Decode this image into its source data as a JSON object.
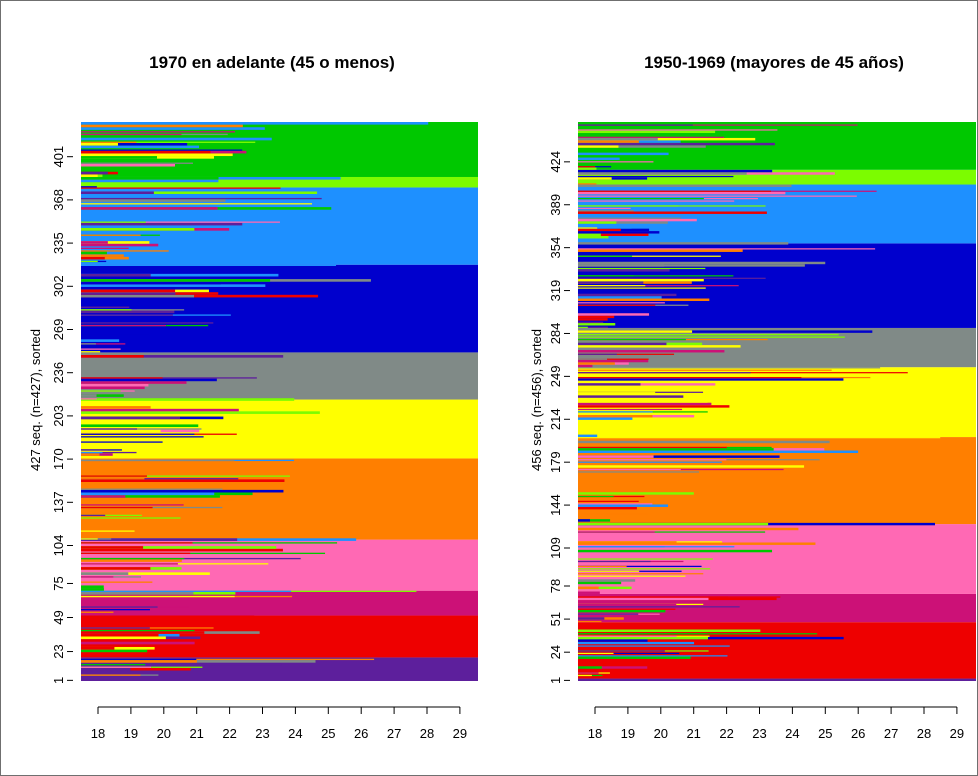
{
  "chart_data": [
    {
      "type": "sequence index plot (sorted)",
      "title": "1970 en adelante (45 o menos)",
      "ylabel": "427 seq. (n=427), sorted",
      "n_sequences": 427,
      "x_ticks": [
        "18",
        "19",
        "20",
        "21",
        "22",
        "23",
        "24",
        "25",
        "26",
        "27",
        "28",
        "29"
      ],
      "y_ticks": [
        "1",
        "23",
        "49",
        "75",
        "104",
        "137",
        "170",
        "203",
        "236",
        "269",
        "302",
        "335",
        "368",
        "401"
      ],
      "states_bottom_to_top": [
        {
          "color": "#5d1f9c",
          "ends_at_seq": 18
        },
        {
          "color": "#ee0000",
          "ends_at_seq": 50
        },
        {
          "color": "#cc1177",
          "ends_at_seq": 69
        },
        {
          "color": "#ff69b4",
          "ends_at_seq": 108
        },
        {
          "color": "#ff7f00",
          "ends_at_seq": 170
        },
        {
          "color": "#ffff00",
          "ends_at_seq": 215
        },
        {
          "color": "#808a87",
          "ends_at_seq": 251
        },
        {
          "color": "#0000cd",
          "ends_at_seq": 318
        },
        {
          "color": "#1e90ff",
          "ends_at_seq": 377
        },
        {
          "color": "#7cfc00",
          "ends_at_seq": 385
        },
        {
          "color": "#00c800",
          "ends_at_seq": 427
        }
      ]
    },
    {
      "type": "sequence index plot (sorted)",
      "title": "1950-1969 (mayores de 45 años)",
      "ylabel": "456 seq. (n=456), sorted",
      "n_sequences": 456,
      "x_ticks": [
        "18",
        "19",
        "20",
        "21",
        "22",
        "23",
        "24",
        "25",
        "26",
        "27",
        "28",
        "29"
      ],
      "y_ticks": [
        "1",
        "24",
        "51",
        "78",
        "109",
        "144",
        "179",
        "214",
        "249",
        "284",
        "319",
        "354",
        "389",
        "424"
      ],
      "states_bottom_to_top": [
        {
          "color": "#5d1f9c",
          "ends_at_seq": 2
        },
        {
          "color": "#ee0000",
          "ends_at_seq": 48
        },
        {
          "color": "#cc1177",
          "ends_at_seq": 71
        },
        {
          "color": "#ff69b4",
          "ends_at_seq": 128
        },
        {
          "color": "#ff7f00",
          "ends_at_seq": 199
        },
        {
          "color": "#ffff00",
          "ends_at_seq": 256
        },
        {
          "color": "#808a87",
          "ends_at_seq": 288
        },
        {
          "color": "#0000cd",
          "ends_at_seq": 357
        },
        {
          "color": "#1e90ff",
          "ends_at_seq": 405
        },
        {
          "color": "#7cfc00",
          "ends_at_seq": 417
        },
        {
          "color": "#00c800",
          "ends_at_seq": 456
        }
      ]
    }
  ]
}
